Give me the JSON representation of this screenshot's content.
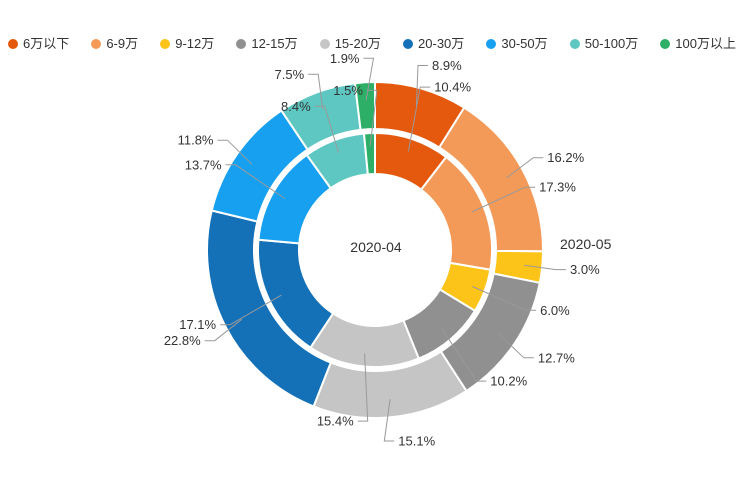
{
  "chart_data": {
    "type": "pie",
    "subtype": "nested_donut",
    "title": "",
    "unit": "%",
    "legend_position": "top",
    "start_angle": "top",
    "direction": "clockwise",
    "categories": [
      "6万以下",
      "6-9万",
      "9-12万",
      "12-15万",
      "15-20万",
      "20-30万",
      "30-50万",
      "50-100万",
      "100万以上"
    ],
    "colors": [
      "#e4590e",
      "#f49a59",
      "#fcc418",
      "#909090",
      "#c5c5c5",
      "#1471b8",
      "#18a0f0",
      "#5fc7c2",
      "#2daf68"
    ],
    "series": [
      {
        "name": "2020-04",
        "ring": "inner",
        "values": [
          10.4,
          17.3,
          6.0,
          10.2,
          15.4,
          17.1,
          13.7,
          8.4,
          1.5
        ]
      },
      {
        "name": "2020-05",
        "ring": "outer",
        "values": [
          8.9,
          16.2,
          3.0,
          12.7,
          15.1,
          22.8,
          11.8,
          7.5,
          1.9
        ]
      }
    ],
    "center_label": "2020-04",
    "outer_ring_label": "2020-05",
    "label_color": "#333333",
    "leader_line_color": "#999999"
  }
}
